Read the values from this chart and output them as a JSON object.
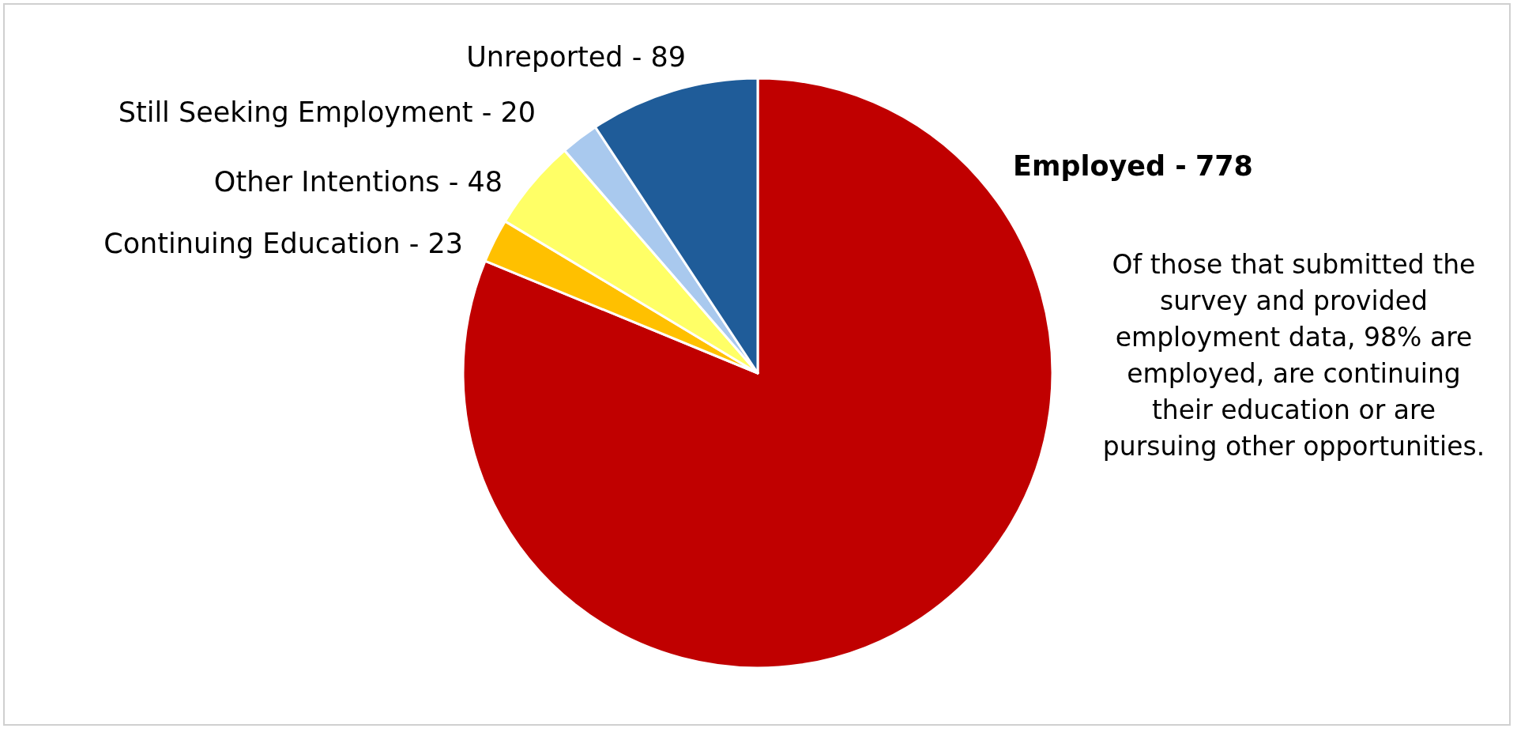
{
  "chart_data": {
    "type": "pie",
    "categories": [
      "Employed -",
      "Continuing Education -",
      "Other Intentions -",
      "Still Seeking Employment -",
      "Unreported -"
    ],
    "values": [
      778,
      23,
      48,
      20,
      89
    ],
    "data_labels": true,
    "colors": [
      "#c00000",
      "#ffc000",
      "#ffff66",
      "#a9c9ee",
      "#1f5c99"
    ],
    "legend": false,
    "annotations": [
      "Of those that submitted the survey and provided employment data, 98% are employed, are continuing their education or are pursuing other opportunities."
    ]
  }
}
